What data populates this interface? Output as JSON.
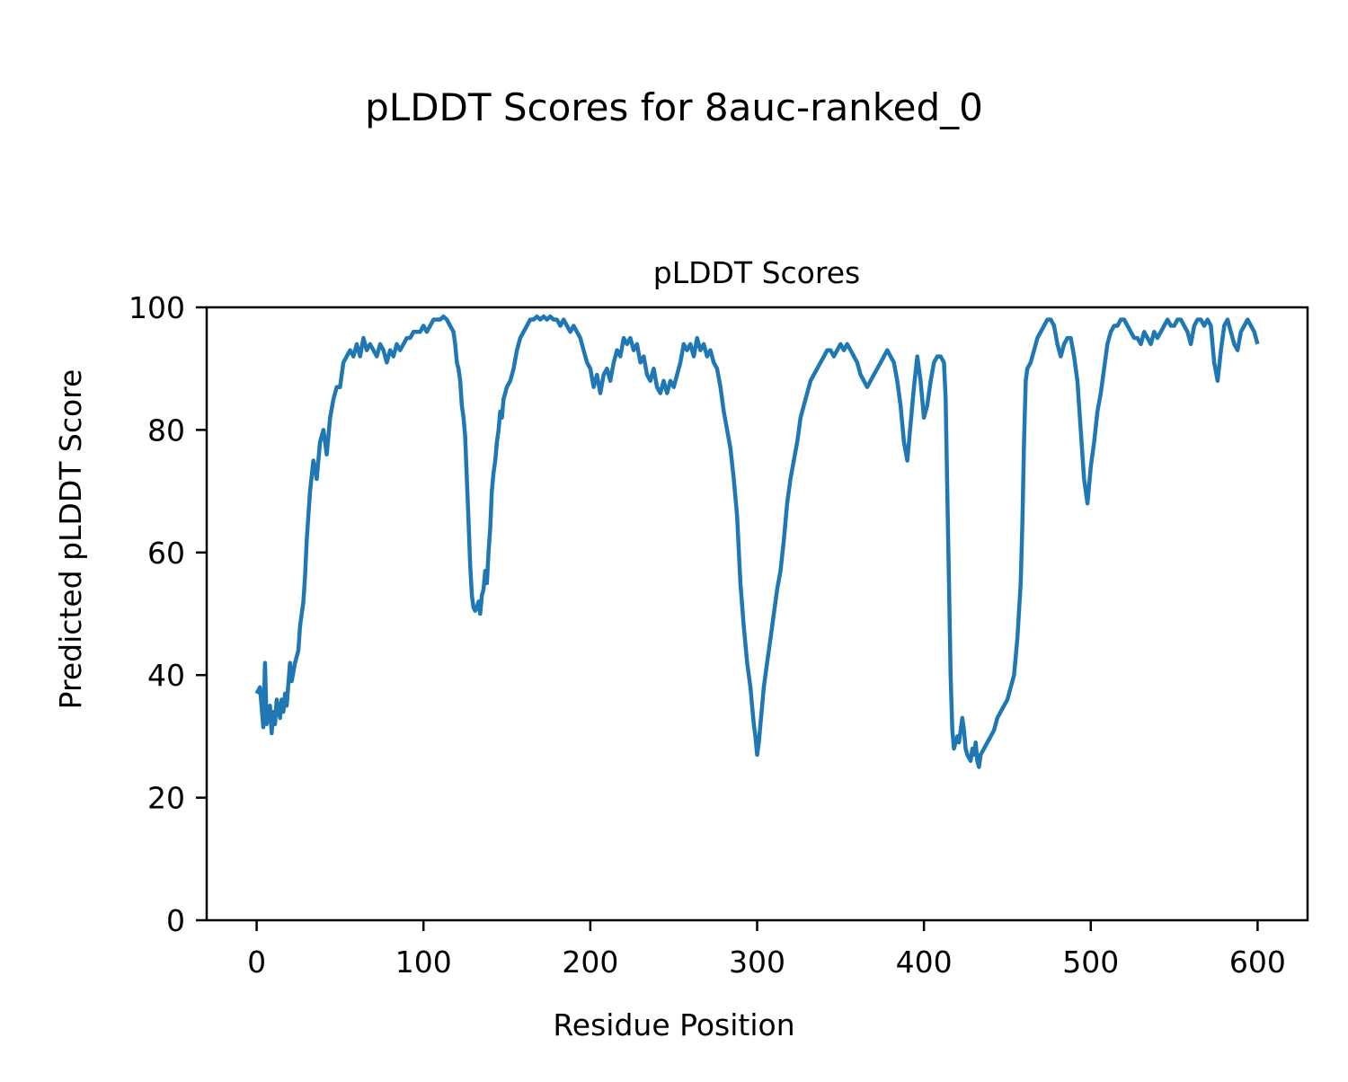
{
  "figure_title": "pLDDT Scores for 8auc-ranked_0",
  "chart_data": {
    "type": "line",
    "title": "pLDDT Scores",
    "xlabel": "Residue Position",
    "ylabel": "Predicted pLDDT Score",
    "xlim": [
      -29.95,
      629.95
    ],
    "ylim": [
      0,
      100
    ],
    "xticks": [
      0,
      100,
      200,
      300,
      400,
      500,
      600
    ],
    "yticks": [
      0,
      20,
      40,
      60,
      80,
      100
    ],
    "grid": false,
    "line_color": "#1f77b4",
    "series": [
      {
        "name": "",
        "points": [
          [
            0,
            37
          ],
          [
            2,
            38
          ],
          [
            4,
            31.5
          ],
          [
            5,
            42
          ],
          [
            6,
            32
          ],
          [
            8,
            35
          ],
          [
            9,
            30.5
          ],
          [
            10,
            34
          ],
          [
            11,
            32
          ],
          [
            12,
            36
          ],
          [
            14,
            33
          ],
          [
            15,
            36
          ],
          [
            16,
            34
          ],
          [
            17,
            37
          ],
          [
            18,
            35
          ],
          [
            20,
            42
          ],
          [
            21,
            39
          ],
          [
            23,
            42
          ],
          [
            25,
            44
          ],
          [
            26,
            48
          ],
          [
            28,
            52
          ],
          [
            29,
            56
          ],
          [
            30,
            62
          ],
          [
            32,
            70
          ],
          [
            34,
            75
          ],
          [
            36,
            72
          ],
          [
            38,
            78
          ],
          [
            40,
            80
          ],
          [
            42,
            76
          ],
          [
            44,
            82
          ],
          [
            46,
            85
          ],
          [
            48,
            87
          ],
          [
            50,
            87
          ],
          [
            52,
            91
          ],
          [
            54,
            92
          ],
          [
            56,
            93
          ],
          [
            58,
            92
          ],
          [
            60,
            94
          ],
          [
            62,
            92
          ],
          [
            64,
            95
          ],
          [
            66,
            93
          ],
          [
            68,
            94
          ],
          [
            70,
            93
          ],
          [
            72,
            92
          ],
          [
            74,
            94
          ],
          [
            76,
            93
          ],
          [
            78,
            91
          ],
          [
            80,
            93
          ],
          [
            82,
            92
          ],
          [
            84,
            94
          ],
          [
            86,
            93
          ],
          [
            88,
            94
          ],
          [
            90,
            95
          ],
          [
            92,
            95
          ],
          [
            94,
            96
          ],
          [
            96,
            96
          ],
          [
            98,
            96
          ],
          [
            100,
            97
          ],
          [
            102,
            96
          ],
          [
            104,
            97
          ],
          [
            106,
            98
          ],
          [
            108,
            98
          ],
          [
            110,
            98
          ],
          [
            112,
            98.5
          ],
          [
            114,
            98
          ],
          [
            116,
            97
          ],
          [
            118,
            96
          ],
          [
            119,
            94
          ],
          [
            120,
            91
          ],
          [
            121,
            90
          ],
          [
            122,
            88
          ],
          [
            123,
            84
          ],
          [
            124,
            82
          ],
          [
            125,
            79
          ],
          [
            126,
            72
          ],
          [
            127,
            65
          ],
          [
            128,
            58
          ],
          [
            129,
            53
          ],
          [
            130,
            51
          ],
          [
            131,
            50.5
          ],
          [
            132,
            51
          ],
          [
            133,
            52
          ],
          [
            134,
            50
          ],
          [
            135,
            53
          ],
          [
            136,
            54
          ],
          [
            137,
            57
          ],
          [
            138,
            55
          ],
          [
            139,
            60
          ],
          [
            140,
            64
          ],
          [
            141,
            70
          ],
          [
            142,
            73
          ],
          [
            143,
            75
          ],
          [
            144,
            78
          ],
          [
            145,
            80
          ],
          [
            146,
            83
          ],
          [
            147,
            82
          ],
          [
            148,
            85
          ],
          [
            149,
            86
          ],
          [
            150,
            87
          ],
          [
            152,
            88
          ],
          [
            154,
            90
          ],
          [
            156,
            93
          ],
          [
            158,
            95
          ],
          [
            160,
            96
          ],
          [
            162,
            97
          ],
          [
            164,
            98
          ],
          [
            166,
            98
          ],
          [
            168,
            98.5
          ],
          [
            170,
            98
          ],
          [
            172,
            98.5
          ],
          [
            174,
            98
          ],
          [
            176,
            98.5
          ],
          [
            178,
            98
          ],
          [
            180,
            98
          ],
          [
            182,
            97
          ],
          [
            184,
            98
          ],
          [
            186,
            97
          ],
          [
            188,
            96
          ],
          [
            190,
            97
          ],
          [
            192,
            96
          ],
          [
            194,
            95
          ],
          [
            196,
            93
          ],
          [
            198,
            91
          ],
          [
            200,
            90
          ],
          [
            202,
            87
          ],
          [
            204,
            89
          ],
          [
            206,
            86
          ],
          [
            208,
            89
          ],
          [
            210,
            90
          ],
          [
            212,
            88
          ],
          [
            214,
            91
          ],
          [
            216,
            93
          ],
          [
            218,
            92
          ],
          [
            220,
            95
          ],
          [
            222,
            94
          ],
          [
            224,
            95
          ],
          [
            226,
            93
          ],
          [
            228,
            94
          ],
          [
            230,
            91
          ],
          [
            232,
            92
          ],
          [
            234,
            89
          ],
          [
            236,
            88
          ],
          [
            238,
            90
          ],
          [
            240,
            87
          ],
          [
            242,
            86
          ],
          [
            244,
            88
          ],
          [
            246,
            86
          ],
          [
            248,
            88
          ],
          [
            250,
            87
          ],
          [
            252,
            89
          ],
          [
            254,
            91
          ],
          [
            256,
            94
          ],
          [
            258,
            93
          ],
          [
            260,
            94
          ],
          [
            262,
            92
          ],
          [
            264,
            95
          ],
          [
            266,
            93
          ],
          [
            268,
            94
          ],
          [
            270,
            92
          ],
          [
            272,
            93
          ],
          [
            274,
            91
          ],
          [
            276,
            90
          ],
          [
            278,
            87
          ],
          [
            280,
            83
          ],
          [
            282,
            80
          ],
          [
            284,
            77
          ],
          [
            286,
            72
          ],
          [
            288,
            66
          ],
          [
            290,
            55
          ],
          [
            292,
            48
          ],
          [
            294,
            42
          ],
          [
            295,
            40
          ],
          [
            296,
            38
          ],
          [
            297,
            35
          ],
          [
            298,
            32
          ],
          [
            299,
            30
          ],
          [
            300,
            27
          ],
          [
            301,
            29
          ],
          [
            302,
            32
          ],
          [
            303,
            35
          ],
          [
            304,
            38
          ],
          [
            306,
            42
          ],
          [
            308,
            46
          ],
          [
            310,
            50
          ],
          [
            312,
            54
          ],
          [
            314,
            57
          ],
          [
            316,
            62
          ],
          [
            318,
            68
          ],
          [
            320,
            72
          ],
          [
            322,
            75
          ],
          [
            324,
            78
          ],
          [
            326,
            82
          ],
          [
            328,
            84
          ],
          [
            330,
            86
          ],
          [
            332,
            88
          ],
          [
            334,
            89
          ],
          [
            336,
            90
          ],
          [
            338,
            91
          ],
          [
            340,
            92
          ],
          [
            342,
            93
          ],
          [
            344,
            93
          ],
          [
            346,
            92
          ],
          [
            348,
            93
          ],
          [
            350,
            94
          ],
          [
            352,
            93
          ],
          [
            354,
            94
          ],
          [
            356,
            93
          ],
          [
            358,
            92
          ],
          [
            360,
            91
          ],
          [
            362,
            89
          ],
          [
            364,
            88
          ],
          [
            366,
            87
          ],
          [
            368,
            88
          ],
          [
            370,
            89
          ],
          [
            372,
            90
          ],
          [
            374,
            91
          ],
          [
            376,
            92
          ],
          [
            378,
            93
          ],
          [
            380,
            92
          ],
          [
            382,
            91
          ],
          [
            384,
            88
          ],
          [
            386,
            84
          ],
          [
            388,
            78
          ],
          [
            390,
            75
          ],
          [
            392,
            81
          ],
          [
            394,
            87
          ],
          [
            396,
            92
          ],
          [
            398,
            88
          ],
          [
            400,
            82
          ],
          [
            402,
            84
          ],
          [
            404,
            88
          ],
          [
            406,
            91
          ],
          [
            408,
            92
          ],
          [
            410,
            92
          ],
          [
            412,
            91
          ],
          [
            413,
            85
          ],
          [
            414,
            70
          ],
          [
            415,
            55
          ],
          [
            416,
            40
          ],
          [
            417,
            31
          ],
          [
            418,
            28
          ],
          [
            419,
            29
          ],
          [
            420,
            30
          ],
          [
            421,
            29
          ],
          [
            422,
            31
          ],
          [
            423,
            33
          ],
          [
            424,
            31
          ],
          [
            425,
            28
          ],
          [
            426,
            27
          ],
          [
            428,
            26
          ],
          [
            429,
            28
          ],
          [
            430,
            27
          ],
          [
            431,
            29
          ],
          [
            432,
            26
          ],
          [
            433,
            25
          ],
          [
            434,
            27
          ],
          [
            436,
            28
          ],
          [
            438,
            29
          ],
          [
            440,
            30
          ],
          [
            442,
            31
          ],
          [
            444,
            33
          ],
          [
            446,
            34
          ],
          [
            448,
            35
          ],
          [
            450,
            36
          ],
          [
            452,
            38
          ],
          [
            454,
            40
          ],
          [
            456,
            46
          ],
          [
            458,
            55
          ],
          [
            459,
            65
          ],
          [
            460,
            78
          ],
          [
            461,
            88
          ],
          [
            462,
            90
          ],
          [
            464,
            91
          ],
          [
            466,
            93
          ],
          [
            468,
            95
          ],
          [
            470,
            96
          ],
          [
            472,
            97
          ],
          [
            474,
            98
          ],
          [
            476,
            98
          ],
          [
            478,
            97
          ],
          [
            480,
            94
          ],
          [
            482,
            92
          ],
          [
            484,
            94
          ],
          [
            486,
            95
          ],
          [
            488,
            95
          ],
          [
            490,
            92
          ],
          [
            492,
            88
          ],
          [
            494,
            80
          ],
          [
            496,
            72
          ],
          [
            498,
            68
          ],
          [
            500,
            74
          ],
          [
            502,
            78
          ],
          [
            504,
            83
          ],
          [
            506,
            86
          ],
          [
            508,
            90
          ],
          [
            510,
            94
          ],
          [
            512,
            96
          ],
          [
            514,
            97
          ],
          [
            516,
            97
          ],
          [
            518,
            98
          ],
          [
            520,
            98
          ],
          [
            522,
            97
          ],
          [
            524,
            96
          ],
          [
            526,
            95
          ],
          [
            528,
            95
          ],
          [
            530,
            94
          ],
          [
            532,
            96
          ],
          [
            534,
            95
          ],
          [
            536,
            94
          ],
          [
            538,
            96
          ],
          [
            540,
            95
          ],
          [
            542,
            96
          ],
          [
            544,
            97
          ],
          [
            546,
            98
          ],
          [
            548,
            97
          ],
          [
            550,
            97
          ],
          [
            552,
            98
          ],
          [
            554,
            98
          ],
          [
            556,
            97
          ],
          [
            558,
            96
          ],
          [
            560,
            94
          ],
          [
            562,
            97
          ],
          [
            564,
            98
          ],
          [
            566,
            98
          ],
          [
            568,
            97
          ],
          [
            570,
            98
          ],
          [
            572,
            97
          ],
          [
            574,
            91
          ],
          [
            576,
            88
          ],
          [
            578,
            93
          ],
          [
            580,
            97
          ],
          [
            582,
            98
          ],
          [
            584,
            96
          ],
          [
            586,
            94
          ],
          [
            588,
            93
          ],
          [
            590,
            96
          ],
          [
            592,
            97
          ],
          [
            594,
            98
          ],
          [
            596,
            97
          ],
          [
            598,
            96
          ],
          [
            600,
            94
          ]
        ]
      }
    ]
  }
}
